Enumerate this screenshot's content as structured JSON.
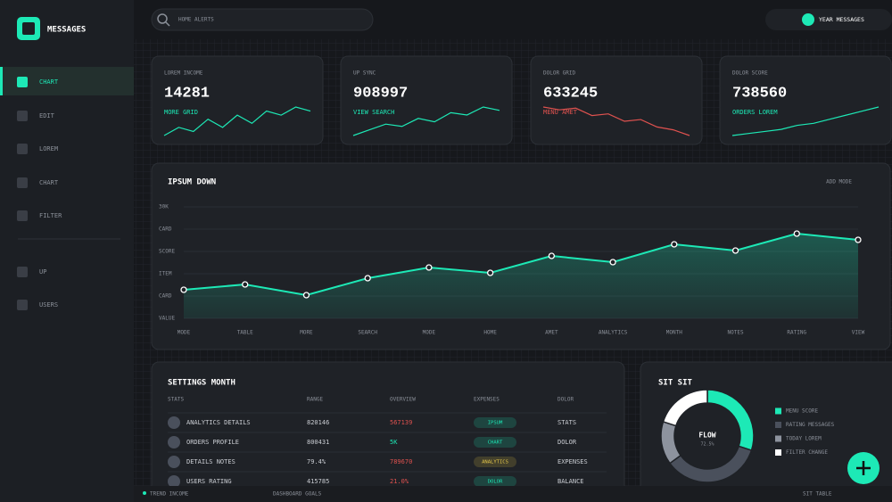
{
  "sidebar": {
    "brand": "MESSAGES",
    "nav": [
      "CHART",
      "EDIT",
      "LOREM",
      "CHART",
      "FILTER"
    ],
    "nav_secondary": [
      "UP",
      "USERS"
    ]
  },
  "topbar": {
    "search": "HOME ALERTS",
    "toggle_label": "YEAR MESSAGES"
  },
  "cards": [
    {
      "label": "LOREM INCOME",
      "value": 14281,
      "caption": "MORE GRID",
      "color": "#1de9b6",
      "trend": [
        2,
        4,
        3,
        6,
        4,
        7,
        5,
        8,
        7,
        9,
        8
      ]
    },
    {
      "label": "UP SYNC",
      "value": 908997,
      "caption": "VIEW SEARCH",
      "color": "#1de9b6",
      "trend": [
        2,
        2.5,
        3,
        2.8,
        3.5,
        3.2,
        4,
        3.8,
        4.5,
        4.2
      ]
    },
    {
      "label": "DOLOR GRID",
      "value": 633245,
      "caption": "MENU AMET",
      "color": "#e0524f",
      "trend": [
        8,
        7.5,
        7.8,
        6.5,
        6.8,
        5.5,
        5.8,
        4.5,
        4,
        3
      ]
    },
    {
      "label": "DOLOR SCORE",
      "value": 738560,
      "caption": "ORDERS LOREM",
      "color": "#1de9b6",
      "trend": [
        2,
        2.5,
        3,
        3.5,
        4.5,
        5,
        6,
        7,
        8,
        9
      ]
    }
  ],
  "main_chart": {
    "type": "area",
    "title": "IPSUM DOWN",
    "action": "ADD MODE",
    "categories": [
      "MODE",
      "TABLE",
      "MORE",
      "SEARCH",
      "MODE",
      "HOME",
      "AMET",
      "ANALYTICS",
      "MONTH",
      "NOTES",
      "RATING",
      "VIEW"
    ],
    "series": [
      {
        "color": "#1de9b6",
        "values": [
          1.28,
          1.52,
          1.04,
          1.8,
          2.28,
          2.04,
          2.8,
          2.52,
          3.32,
          3.04,
          3.8,
          3.52
        ]
      }
    ],
    "ylim": [
      0,
      5
    ],
    "yticks": [
      {
        "value": 0,
        "label": "VALUE"
      },
      {
        "value": 1,
        "label": "CARD"
      },
      {
        "value": 2,
        "label": "ITEM"
      },
      {
        "value": 3,
        "label": "SCORE"
      },
      {
        "value": 4,
        "label": "CARD"
      },
      {
        "value": 5,
        "label": "30K"
      }
    ],
    "grid": true
  },
  "table": {
    "title": "SETTINGS MONTH",
    "headers": [
      "STATS",
      "RANGE",
      "OVERVIEW",
      "EXPENSES",
      "DOLOR"
    ],
    "rows": [
      {
        "stats": "ANALYTICS DETAILS",
        "range": "820146",
        "overview": "567139",
        "overview_color": "#e0524f",
        "expenses": "IPSUM",
        "badge_color": "#1de9b6",
        "dolor": "STATS"
      },
      {
        "stats": "ORDERS PROFILE",
        "range": "800431",
        "overview": "5K",
        "overview_color": "#1de9b6",
        "expenses": "CHART",
        "badge_color": "#1de9b6",
        "dolor": "DOLOR"
      },
      {
        "stats": "DETAILS NOTES",
        "range": "79.4%",
        "overview": "789670",
        "overview_color": "#e0524f",
        "expenses": "ANALYTICS",
        "badge_color": "#e6c94a",
        "dolor": "EXPENSES"
      },
      {
        "stats": "USERS RATING",
        "range": "415785",
        "overview": "21.0%",
        "overview_color": "#e0524f",
        "expenses": "DOLOR",
        "badge_color": "#1de9b6",
        "dolor": "BALANCE"
      }
    ]
  },
  "donut": {
    "type": "pie",
    "title": "SIT SIT",
    "center_label": "FLOW",
    "center_value": "72.5%",
    "categories": [
      "MENU SCORE",
      "RATING MESSAGES",
      "TODAY LOREM",
      "FILTER CHANGE"
    ],
    "values": [
      30,
      35,
      15,
      20
    ],
    "colors": [
      "#1de9b6",
      "#4a505c",
      "#8d939e",
      "#ffffff"
    ]
  },
  "footer": {
    "items": [
      "TREND INCOME",
      "DASHBOARD GOALS",
      "SIT TABLE"
    ]
  }
}
